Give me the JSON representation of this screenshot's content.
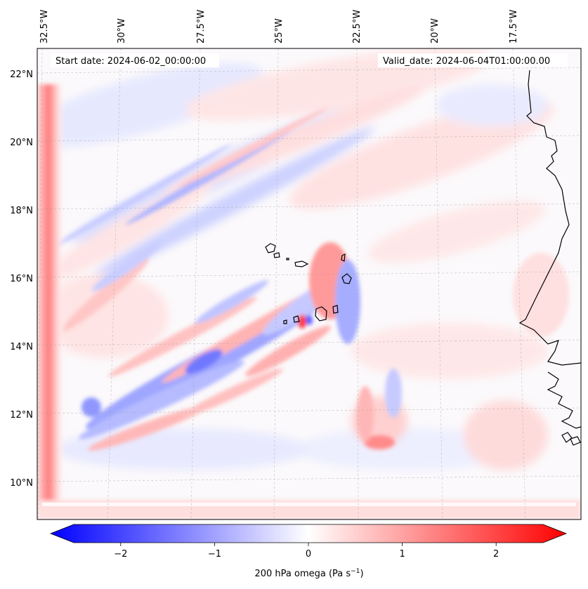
{
  "map": {
    "start_date": "Start date: 2024-06-02_00:00:00",
    "valid_date": "Valid_date: 2024-06-04T01:00:00.00",
    "lon_labels": [
      "32.5°W",
      "30°W",
      "27.5°W",
      "25°W",
      "22.5°W",
      "20°W",
      "17.5°W"
    ],
    "lat_labels": [
      "22°N",
      "20°N",
      "18°N",
      "16°N",
      "14°N",
      "12°N",
      "10°N"
    ],
    "grid": true
  },
  "colorbar": {
    "label": "200 hPa omega (Pa s",
    "label_sup": "−1",
    "label_end": ")",
    "ticks": [
      {
        "value": -2,
        "label": "−2"
      },
      {
        "value": -1,
        "label": "−1"
      },
      {
        "value": 0,
        "label": "0"
      },
      {
        "value": 1,
        "label": "1"
      },
      {
        "value": 2,
        "label": "2"
      }
    ],
    "range": [
      -2.5,
      2.5
    ],
    "colors": {
      "low": "#0000ff",
      "mid": "#ffffff",
      "high": "#ff0000"
    }
  }
}
